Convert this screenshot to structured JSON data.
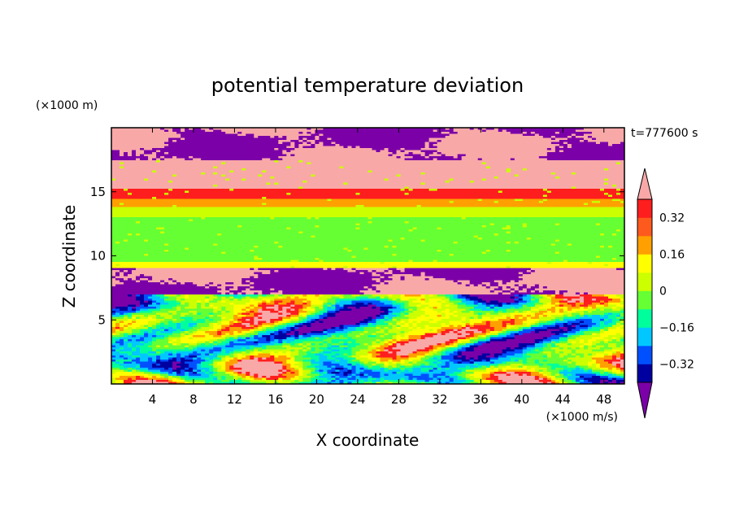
{
  "chart_data": {
    "type": "heatmap",
    "title": "potential temperature deviation",
    "xlabel": "X coordinate",
    "ylabel": "Z coordinate",
    "x_unit": "(×1000 m/s)",
    "y_unit": "(×1000 m)",
    "time_label": "t=777600 s",
    "xlim": [
      0,
      50
    ],
    "ylim": [
      0,
      20
    ],
    "x_ticks": [
      4,
      8,
      12,
      16,
      20,
      24,
      28,
      32,
      36,
      40,
      44,
      48
    ],
    "y_ticks": [
      5,
      10,
      15
    ],
    "colorbar": {
      "labels": [
        "0.32",
        "0.16",
        "0",
        "−0.16",
        "−0.32"
      ],
      "label_values": [
        0.32,
        0.16,
        0,
        -0.16,
        -0.32
      ],
      "levels": [
        -0.4,
        -0.32,
        -0.24,
        -0.16,
        -0.08,
        0,
        0.08,
        0.16,
        0.24,
        0.32,
        0.4
      ],
      "colors": [
        "#7b00a8",
        "#0000a0",
        "#0050ff",
        "#00c8ff",
        "#00ff9c",
        "#66ff33",
        "#ccff00",
        "#ffff00",
        "#ffa000",
        "#ff5a1e",
        "#ff1e1e",
        "#f9a8a8"
      ],
      "extend": "both"
    },
    "layers": [
      {
        "z_range": [
          17.5,
          20
        ],
        "pattern": "mixed",
        "colors": [
          "#7b00a8",
          "#f9a8a8"
        ]
      },
      {
        "z_range": [
          15.2,
          17.5
        ],
        "pattern": "uniform",
        "color": "#f9a8a8"
      },
      {
        "z_range": [
          14.5,
          15.2
        ],
        "pattern": "band",
        "color": "#ff1e1e"
      },
      {
        "z_range": [
          13.8,
          14.5
        ],
        "pattern": "band",
        "color": "#ffa000"
      },
      {
        "z_range": [
          13.0,
          13.8
        ],
        "pattern": "band",
        "color": "#ccff00"
      },
      {
        "z_range": [
          9.5,
          13.0
        ],
        "pattern": "band",
        "color": "#66ff33"
      },
      {
        "z_range": [
          9.0,
          9.5
        ],
        "pattern": "band",
        "color": "#ffff00"
      },
      {
        "z_range": [
          7.0,
          9.0
        ],
        "pattern": "mixed",
        "colors": [
          "#7b00a8",
          "#f9a8a8"
        ]
      },
      {
        "z_range": [
          0,
          7.0
        ],
        "pattern": "turbulent",
        "colors": [
          "#7b00a8",
          "#0000a0",
          "#0050ff",
          "#00c8ff",
          "#00ff9c",
          "#66ff33",
          "#ccff00",
          "#ffff00",
          "#ffa000",
          "#ff1e1e",
          "#f9a8a8"
        ]
      }
    ]
  }
}
